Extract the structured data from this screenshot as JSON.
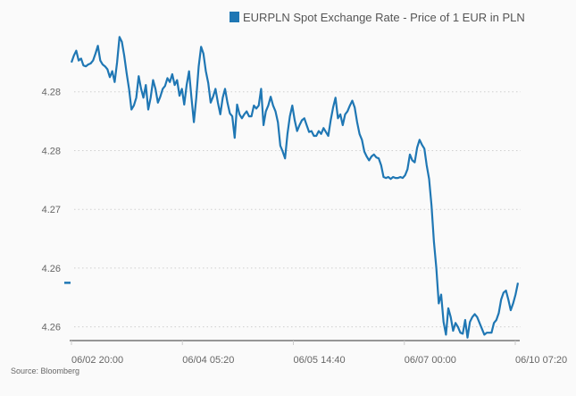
{
  "chart_data": {
    "type": "line",
    "title": "",
    "xlabel": "",
    "ylabel": "",
    "legend": {
      "position": "top-right",
      "entries": [
        "EURPLN Spot Exchange Rate - Price of 1 EUR in PLN"
      ]
    },
    "series_color": "#1f77b4",
    "grid": {
      "horizontal": true,
      "vertical": false,
      "style": "dotted"
    },
    "ylim": [
      4.2566,
      4.288
    ],
    "y_ticks": [
      4.282,
      4.276,
      4.27,
      4.264,
      4.258
    ],
    "y_tick_labels": [
      "4.28",
      "4.28",
      "4.27",
      "4.26",
      "4.26"
    ],
    "x_tick_labels": [
      "06/02 20:00",
      "06/04 05:20",
      "06/05 14:40",
      "06/07 00:00",
      "06/10 07:20"
    ],
    "last_value": 4.2625,
    "series": [
      {
        "name": "EURPLN Spot Exchange Rate - Price of 1 EUR in PLN",
        "values": [
          4.285,
          4.2857,
          4.2862,
          4.2852,
          4.2854,
          4.2847,
          4.2846,
          4.2848,
          4.2849,
          4.2852,
          4.2859,
          4.2867,
          4.2852,
          4.2848,
          4.2846,
          4.2843,
          4.2835,
          4.2841,
          4.283,
          4.285,
          4.2876,
          4.2871,
          4.2857,
          4.2839,
          4.2823,
          4.2802,
          4.2806,
          4.2814,
          4.2836,
          4.2823,
          4.2814,
          4.2827,
          4.2802,
          4.2814,
          4.2832,
          4.2823,
          4.2809,
          4.2815,
          4.2823,
          4.2826,
          4.2834,
          4.283,
          4.2838,
          4.2827,
          4.2832,
          4.2816,
          4.2823,
          4.2807,
          4.2827,
          4.2841,
          4.2814,
          4.2789,
          4.2814,
          4.2846,
          4.2866,
          4.2859,
          4.2841,
          4.2829,
          4.2809,
          4.2815,
          4.2823,
          4.2809,
          4.2797,
          4.2814,
          4.2823,
          4.2809,
          4.2798,
          4.2795,
          4.2773,
          4.2807,
          4.2797,
          4.2793,
          4.2797,
          4.28,
          4.2795,
          4.2795,
          4.2806,
          4.2803,
          4.2806,
          4.2823,
          4.2786,
          4.28,
          4.2806,
          4.2815,
          4.2806,
          4.28,
          4.2789,
          4.2765,
          4.2759,
          4.2752,
          4.2777,
          4.2795,
          4.2806,
          4.2791,
          4.278,
          4.2786,
          4.2791,
          4.2793,
          4.2786,
          4.2779,
          4.278,
          4.2775,
          4.2775,
          4.278,
          4.2777,
          4.2783,
          4.2779,
          4.2775,
          4.2791,
          4.2804,
          4.2814,
          4.2793,
          4.2797,
          4.2786,
          4.2797,
          4.28,
          4.2806,
          4.2811,
          4.2804,
          4.2789,
          4.2777,
          4.2771,
          4.2759,
          4.2754,
          4.275,
          4.2754,
          4.2756,
          4.2753,
          4.2752,
          4.2745,
          4.2733,
          4.2732,
          4.2733,
          4.2731,
          4.2733,
          4.2732,
          4.2732,
          4.2733,
          4.2732,
          4.2735,
          4.2741,
          4.2756,
          4.275,
          4.2748,
          4.2763,
          4.2771,
          4.2766,
          4.2762,
          4.2745,
          4.2731,
          4.2704,
          4.2667,
          4.264,
          4.2604,
          4.2613,
          4.2585,
          4.2572,
          4.2599,
          4.259,
          4.2576,
          4.2584,
          4.258,
          4.2574,
          4.2573,
          4.2587,
          4.2569,
          4.2585,
          4.259,
          4.2593,
          4.259,
          4.2584,
          4.2578,
          4.2572,
          4.2574,
          4.2574,
          4.2574,
          4.2584,
          4.2587,
          4.2594,
          4.2608,
          4.2615,
          4.2617,
          4.2608,
          4.2597,
          4.2604,
          4.2613,
          4.2625
        ]
      }
    ]
  },
  "source": "Source: Bloomberg"
}
